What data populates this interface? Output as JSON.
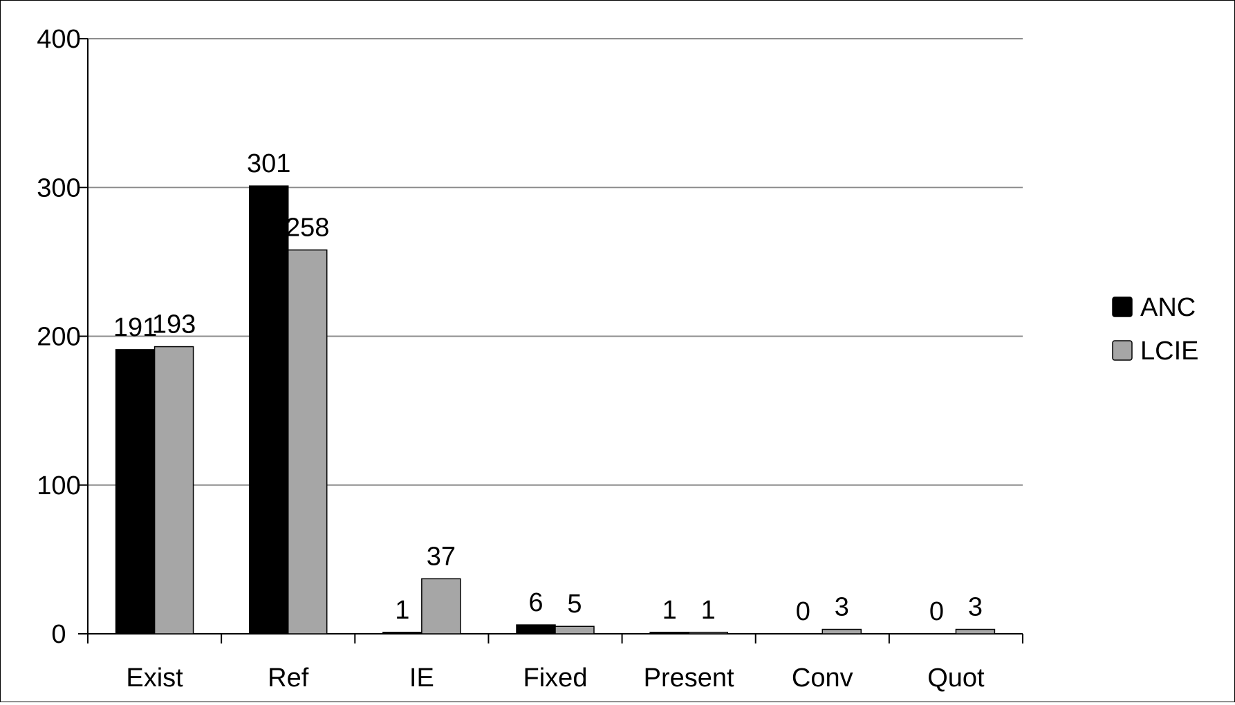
{
  "chart_data": {
    "type": "bar",
    "categories": [
      "Exist",
      "Ref",
      "IE",
      "Fixed",
      "Present",
      "Conv",
      "Quot"
    ],
    "series": [
      {
        "name": "ANC",
        "values": [
          191,
          301,
          1,
          6,
          1,
          0,
          0
        ],
        "color": "#000000"
      },
      {
        "name": "LCIE",
        "values": [
          193,
          258,
          37,
          5,
          1,
          3,
          3
        ],
        "color": "#a6a6a6"
      }
    ],
    "title": "",
    "xlabel": "",
    "ylabel": "",
    "ylim": [
      0,
      400
    ],
    "yticks": [
      0,
      100,
      200,
      300,
      400
    ],
    "grid": true,
    "legend_position": "right",
    "data_labels": true
  }
}
